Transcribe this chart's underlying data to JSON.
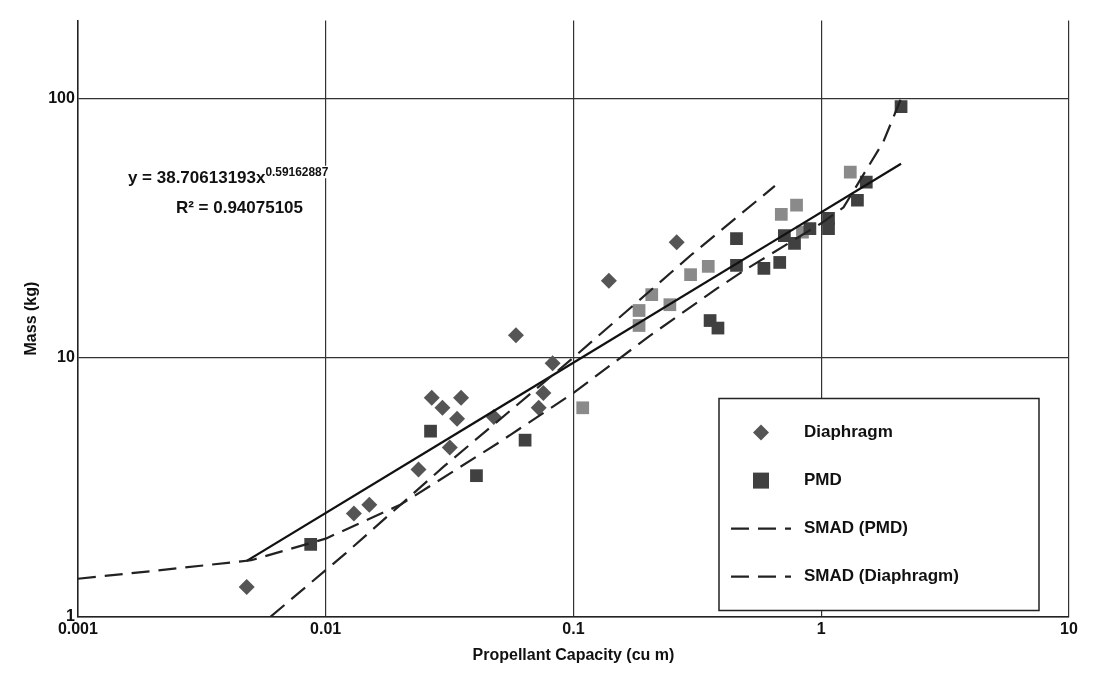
{
  "chart_data": {
    "type": "scatter",
    "xlabel": "Propellant Capacity (cu m)",
    "ylabel": "Mass (kg)",
    "log": "xy",
    "xlim": [
      0.001,
      10
    ],
    "xticks": [
      0.001,
      0.01,
      0.1,
      1,
      10
    ],
    "ylim": [
      1,
      200
    ],
    "yticks": [
      1,
      10,
      100
    ],
    "grid": true,
    "legend": "bottom right",
    "annotations": [
      "y = 38.70613193x$^{0.59162887}$",
      "R² = 0.94075105"
    ],
    "series": [
      {
        "name": "Diaphragm",
        "type": "scatter",
        "marker": "diamond",
        "color": "#555555",
        "x": [
          0.0048,
          0.013,
          0.015,
          0.0237,
          0.0268,
          0.0296,
          0.0352,
          0.0339,
          0.0317,
          0.0477,
          0.0586,
          0.0756,
          0.0724,
          0.0824,
          0.139,
          0.261
        ],
        "values": [
          1.3,
          2.5,
          2.7,
          3.7,
          7.0,
          6.4,
          7.0,
          5.8,
          4.5,
          5.9,
          12.2,
          7.3,
          6.4,
          9.5,
          19.8,
          27.9
        ]
      },
      {
        "name": "PMD",
        "type": "scatter",
        "marker": "square",
        "color": "#404040",
        "x": [
          0.0087,
          0.0265,
          0.0406,
          0.0638,
          0.356,
          0.383,
          0.455,
          0.455,
          0.587,
          0.68,
          0.71,
          0.78,
          0.9,
          1.07,
          1.07,
          1.4,
          1.52,
          2.1
        ],
        "values": [
          1.9,
          5.2,
          3.5,
          4.8,
          13.9,
          13.0,
          28.8,
          22.7,
          22.1,
          23.3,
          29.6,
          27.6,
          31.5,
          34.5,
          31.5,
          40.5,
          47.6,
          93
        ]
      },
      {
        "name": null,
        "type": "scatter",
        "marker": "square",
        "color": "#8a8a8a",
        "x": [
          0.109,
          0.184,
          0.184,
          0.207,
          0.245,
          0.297,
          0.35,
          0.69,
          0.795,
          0.84,
          1.31
        ],
        "values": [
          6.4,
          15.2,
          13.3,
          17.5,
          16.0,
          20.9,
          22.5,
          35.7,
          38.8,
          30.5,
          52
        ]
      },
      {
        "name": "SMAD (PMD)",
        "type": "line",
        "line_style": "dashed",
        "marker": "none",
        "color": "#222222",
        "x": [
          0.001,
          0.002,
          0.005,
          0.01,
          0.02,
          0.05,
          0.1,
          0.2,
          0.38,
          0.5,
          1.0,
          1.23,
          1.78,
          2.1
        ],
        "values": [
          1.4,
          1.5,
          1.65,
          2.0,
          2.7,
          4.7,
          7.3,
          12,
          18.5,
          22,
          33,
          38,
          68,
          100
        ]
      },
      {
        "name": "SMAD (Diaphragm)",
        "type": "line",
        "line_style": "dashed",
        "marker": "none",
        "color": "#222222",
        "x": [
          0.006,
          0.012,
          0.03,
          0.1,
          0.3,
          0.65
        ],
        "values": [
          1.0,
          1.75,
          3.8,
          10,
          25,
          46
        ]
      },
      {
        "type": "line",
        "line_style": "solid",
        "marker": "none",
        "color": "#111111",
        "x": [
          0.0048,
          2.1
        ],
        "values": [
          1.64,
          56
        ]
      }
    ]
  }
}
